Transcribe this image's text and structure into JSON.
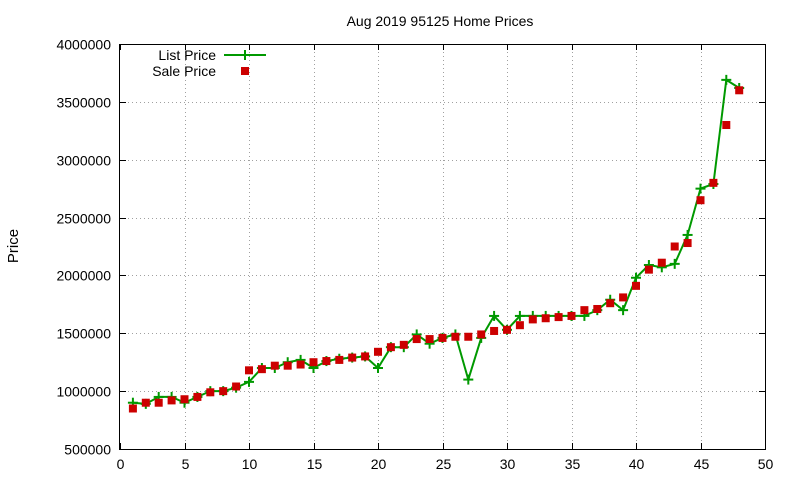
{
  "chart_data": {
    "type": "line",
    "title": "Aug 2019 95125 Home Prices",
    "xlabel": "",
    "ylabel": "Price",
    "xlim": [
      0,
      50
    ],
    "ylim": [
      500000,
      4000000
    ],
    "xticks": [
      "0",
      "5",
      "10",
      "15",
      "20",
      "25",
      "30",
      "35",
      "40",
      "45",
      "50"
    ],
    "yticks": [
      "500000",
      "1000000",
      "1500000",
      "2000000",
      "2500000",
      "3000000",
      "3500000",
      "4000000"
    ],
    "grid": true,
    "legend_position": "top-left",
    "x": [
      1,
      2,
      3,
      4,
      5,
      6,
      7,
      8,
      9,
      10,
      11,
      12,
      13,
      14,
      15,
      16,
      17,
      18,
      19,
      20,
      21,
      22,
      23,
      24,
      25,
      26,
      27,
      28,
      29,
      30,
      31,
      32,
      33,
      34,
      35,
      36,
      37,
      38,
      39,
      40,
      41,
      42,
      43,
      44,
      45,
      46,
      47,
      48
    ],
    "series": [
      {
        "name": "List Price",
        "color": "#009900",
        "marker": "plus",
        "style": "line",
        "values": [
          900000,
          890000,
          950000,
          950000,
          900000,
          950000,
          1000000,
          1000000,
          1030000,
          1080000,
          1200000,
          1200000,
          1250000,
          1270000,
          1200000,
          1260000,
          1280000,
          1290000,
          1300000,
          1200000,
          1380000,
          1380000,
          1490000,
          1410000,
          1460000,
          1490000,
          1100000,
          1460000,
          1650000,
          1530000,
          1650000,
          1650000,
          1650000,
          1650000,
          1650000,
          1650000,
          1700000,
          1790000,
          1700000,
          1980000,
          2090000,
          2070000,
          2100000,
          2350000,
          2750000,
          2790000,
          3690000,
          3620000
        ]
      },
      {
        "name": "Sale Price",
        "color": "#cc0000",
        "marker": "square",
        "style": "points",
        "values": [
          850000,
          900000,
          900000,
          920000,
          930000,
          950000,
          990000,
          1000000,
          1040000,
          1180000,
          1190000,
          1220000,
          1220000,
          1230000,
          1250000,
          1260000,
          1270000,
          1290000,
          1300000,
          1340000,
          1380000,
          1400000,
          1450000,
          1450000,
          1460000,
          1470000,
          1470000,
          1490000,
          1520000,
          1530000,
          1570000,
          1620000,
          1630000,
          1640000,
          1650000,
          1700000,
          1710000,
          1760000,
          1810000,
          1910000,
          2050000,
          2110000,
          2250000,
          2280000,
          2650000,
          2800000,
          3300000,
          3600000
        ]
      }
    ]
  }
}
